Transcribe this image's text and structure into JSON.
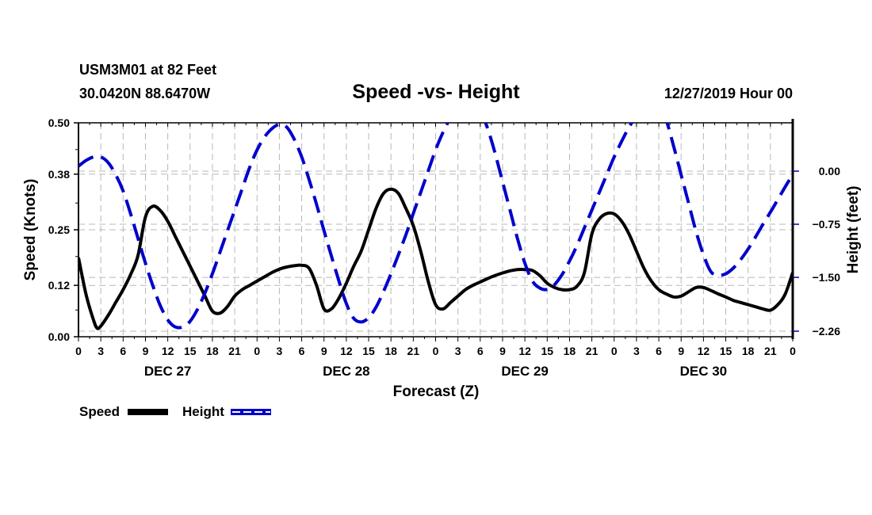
{
  "header": {
    "station": "USM3M01 at 82 Feet",
    "coords": "30.0420N 88.6470W",
    "title": "Speed -vs- Height",
    "datetime": "12/27/2019 Hour 00"
  },
  "colors": {
    "speed": "#000000",
    "height": "#0000cc",
    "grid": "#b8b8b8"
  },
  "chart_data": {
    "type": "line",
    "title": "Speed -vs- Height",
    "xlabel": "Forecast (Z)",
    "ylabel": "Speed (Knots)",
    "y2label": "Height (feet)",
    "xlim": [
      0,
      96
    ],
    "ylim": [
      0,
      0.5
    ],
    "y2lim": [
      -2.26,
      0.23
    ],
    "grid": true,
    "legend_position": "bottom-left",
    "x_tick_hours": [
      0,
      3,
      6,
      9,
      12,
      15,
      18,
      21,
      24,
      27,
      30,
      33,
      36,
      39,
      42,
      45,
      48,
      51,
      54,
      57,
      60,
      63,
      66,
      69,
      72,
      75,
      78,
      81,
      84,
      87,
      90,
      93,
      96
    ],
    "x_tick_labels": [
      "0",
      "3",
      "6",
      "9",
      "12",
      "15",
      "18",
      "21",
      "0",
      "3",
      "6",
      "9",
      "12",
      "15",
      "18",
      "21",
      "0",
      "3",
      "6",
      "9",
      "12",
      "15",
      "18",
      "21",
      "0",
      "3",
      "6",
      "9",
      "12",
      "15",
      "18",
      "21",
      "0"
    ],
    "day_labels": [
      {
        "hour": 12,
        "label": "DEC 27"
      },
      {
        "hour": 36,
        "label": "DEC 28"
      },
      {
        "hour": 60,
        "label": "DEC 29"
      },
      {
        "hour": 84,
        "label": "DEC 30"
      }
    ],
    "y_ticks": [
      0.0,
      0.12,
      0.25,
      0.38,
      0.5
    ],
    "y_tick_labels": [
      "0.00",
      "0.12",
      "0.25",
      "0.38",
      "0.50"
    ],
    "y2_ticks": [
      0.0,
      -0.75,
      -1.5,
      -2.26
    ],
    "y2_tick_labels": [
      "0.00",
      "-0.75",
      "-1.50",
      "-2.26"
    ],
    "series": [
      {
        "name": "Speed",
        "axis": "left",
        "style": "solid",
        "x": [
          0,
          1,
          2,
          2.5,
          3,
          4,
          5,
          6,
          7,
          8,
          9,
          10,
          11,
          12,
          13,
          14,
          15,
          16,
          17,
          18,
          19,
          20,
          21,
          22,
          23,
          24,
          25,
          26,
          27,
          28,
          29,
          30,
          31,
          32,
          33,
          34,
          35,
          36,
          37,
          38,
          39,
          40,
          41,
          42,
          43,
          44,
          45,
          46,
          47,
          48,
          49,
          50,
          51,
          52,
          53,
          54,
          55,
          56,
          57,
          58,
          59,
          60,
          61,
          62,
          63,
          64,
          65,
          66,
          67,
          68,
          69,
          70,
          71,
          72,
          73,
          74,
          75,
          76,
          77,
          78,
          79,
          80,
          81,
          82,
          83,
          84,
          85,
          86,
          87,
          88,
          89,
          90,
          91,
          92,
          93,
          94,
          95,
          96
        ],
        "values": [
          0.185,
          0.1,
          0.04,
          0.02,
          0.025,
          0.05,
          0.08,
          0.11,
          0.145,
          0.19,
          0.28,
          0.305,
          0.295,
          0.27,
          0.235,
          0.2,
          0.165,
          0.13,
          0.095,
          0.06,
          0.055,
          0.07,
          0.095,
          0.11,
          0.12,
          0.13,
          0.14,
          0.15,
          0.158,
          0.163,
          0.166,
          0.167,
          0.16,
          0.12,
          0.065,
          0.065,
          0.09,
          0.125,
          0.165,
          0.2,
          0.25,
          0.3,
          0.335,
          0.345,
          0.335,
          0.3,
          0.26,
          0.2,
          0.13,
          0.075,
          0.065,
          0.08,
          0.095,
          0.11,
          0.12,
          0.128,
          0.136,
          0.143,
          0.149,
          0.154,
          0.157,
          0.157,
          0.155,
          0.143,
          0.125,
          0.115,
          0.11,
          0.11,
          0.118,
          0.15,
          0.24,
          0.275,
          0.288,
          0.287,
          0.27,
          0.24,
          0.2,
          0.16,
          0.13,
          0.11,
          0.1,
          0.093,
          0.095,
          0.105,
          0.115,
          0.115,
          0.108,
          0.1,
          0.093,
          0.085,
          0.08,
          0.075,
          0.07,
          0.065,
          0.062,
          0.075,
          0.1,
          0.15
        ],
        "x_extra": [
          96
        ],
        "note": "values estimated from gridlines"
      },
      {
        "name": "Height",
        "axis": "right",
        "style": "dashed",
        "x": [
          0,
          1,
          2,
          3,
          4,
          5,
          6,
          7,
          8,
          9,
          10,
          11,
          12,
          13,
          14,
          15,
          16,
          17,
          18,
          19,
          20,
          21,
          22,
          23,
          24,
          25,
          26,
          27,
          28,
          29,
          30,
          31,
          32,
          33,
          34,
          35,
          36,
          37,
          38,
          39,
          40,
          41,
          42,
          43,
          44,
          45,
          46,
          47,
          48,
          49,
          50,
          51,
          52,
          53,
          54,
          55,
          56,
          57,
          58,
          59,
          60,
          61,
          62,
          63,
          64,
          65,
          66,
          67,
          68,
          69,
          70,
          71,
          72,
          73,
          74,
          75,
          76,
          77,
          78,
          79,
          80,
          81,
          82,
          83,
          84,
          85,
          86,
          87,
          88,
          89,
          90,
          91,
          92,
          93,
          94,
          95,
          96
        ],
        "values": [
          0.07,
          0.15,
          0.2,
          0.2,
          0.12,
          -0.05,
          -0.28,
          -0.6,
          -0.95,
          -1.3,
          -1.62,
          -1.9,
          -2.1,
          -2.2,
          -2.2,
          -2.12,
          -1.95,
          -1.72,
          -1.45,
          -1.15,
          -0.85,
          -0.55,
          -0.25,
          0.05,
          0.3,
          0.48,
          0.6,
          0.66,
          0.62,
          0.45,
          0.2,
          -0.12,
          -0.47,
          -0.84,
          -1.2,
          -1.55,
          -1.87,
          -2.08,
          -2.13,
          -2.07,
          -1.92,
          -1.7,
          -1.45,
          -1.18,
          -0.9,
          -0.6,
          -0.3,
          0.0,
          0.3,
          0.55,
          0.75,
          0.9,
          0.98,
          0.97,
          0.85,
          0.6,
          0.25,
          -0.15,
          -0.55,
          -0.95,
          -1.3,
          -1.55,
          -1.65,
          -1.67,
          -1.6,
          -1.46,
          -1.27,
          -1.05,
          -0.8,
          -0.55,
          -0.3,
          -0.05,
          0.2,
          0.42,
          0.62,
          0.78,
          0.9,
          0.98,
          0.95,
          0.72,
          0.35,
          -0.05,
          -0.45,
          -0.85,
          -1.18,
          -1.42,
          -1.47,
          -1.45,
          -1.37,
          -1.25,
          -1.1,
          -0.93,
          -0.75,
          -0.58,
          -0.4,
          -0.22,
          -0.05
        ],
        "note": "values estimated from gridlines; right axis (feet)"
      }
    ]
  },
  "legend": {
    "speed_label": "Speed",
    "height_label": "Height"
  }
}
